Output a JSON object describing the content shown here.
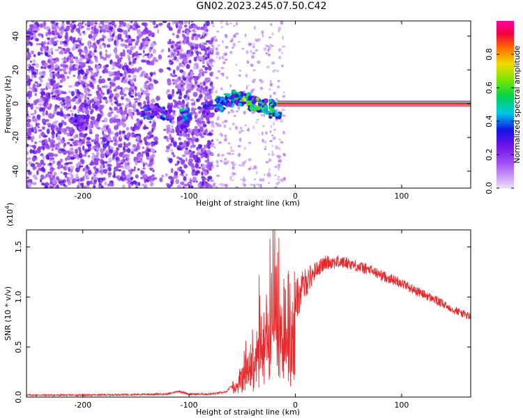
{
  "title": "GN02.2023.245.07.50.C42",
  "chart_data": [
    {
      "type": "heatmap",
      "xlabel": "Height of straight line (km)",
      "ylabel": "Frequency (Hz)",
      "xlim": [
        -253,
        165
      ],
      "ylim": [
        -50,
        49
      ],
      "x_ticks": [
        "-200",
        "-100",
        "0",
        "100"
      ],
      "x_tick_values": [
        -200,
        -100,
        0,
        100
      ],
      "y_ticks": [
        "-40",
        "-20",
        "0",
        "20",
        "40"
      ],
      "y_tick_values": [
        -40,
        -20,
        0,
        20,
        40
      ],
      "colorbar": {
        "label": "Normalized spectral amplitude",
        "ticks": [
          "0.0",
          "0.2",
          "0.4",
          "0.6",
          "0.8"
        ],
        "tick_values": [
          0.0,
          0.2,
          0.4,
          0.6,
          0.8
        ],
        "range": [
          0,
          1
        ]
      },
      "features": {
        "noise_region_x": [
          -253,
          -78
        ],
        "noise_gap_x": [
          -132,
          -120
        ],
        "signal_line_frequency": 0,
        "signal_line_x": [
          -17,
          165
        ],
        "signal_line_amplitude": 1.0,
        "transition_blobs": [
          {
            "x": -203,
            "y": -11,
            "amp": 0.35
          },
          {
            "x": -200,
            "y": -11,
            "amp": 0.3
          },
          {
            "x": -140,
            "y": -5,
            "amp": 0.45
          },
          {
            "x": -132,
            "y": -4,
            "amp": 0.3
          },
          {
            "x": -122,
            "y": -6,
            "amp": 0.4
          },
          {
            "x": -107,
            "y": -13,
            "amp": 0.3
          },
          {
            "x": -103,
            "y": -7,
            "amp": 0.5
          },
          {
            "x": -82,
            "y": -5,
            "amp": 0.35
          },
          {
            "x": -72,
            "y": 0,
            "amp": 0.5
          },
          {
            "x": -63,
            "y": 2,
            "amp": 0.55
          },
          {
            "x": -55,
            "y": 4,
            "amp": 0.6
          },
          {
            "x": -48,
            "y": 2,
            "amp": 0.65
          },
          {
            "x": -40,
            "y": 0,
            "amp": 0.6
          },
          {
            "x": -32,
            "y": -1,
            "amp": 0.6
          },
          {
            "x": -24,
            "y": -2,
            "amp": 0.55
          },
          {
            "x": -19,
            "y": -4,
            "amp": 0.6
          }
        ]
      },
      "grid": false
    },
    {
      "type": "line",
      "xlabel": "Height of straight line (km)",
      "ylabel": "SNR (10 * v/v)",
      "y_exponent_label": "(x10",
      "y_exponent_power": "4",
      "y_exponent_close": ")",
      "xlim": [
        -253,
        165
      ],
      "ylim": [
        0,
        1.67
      ],
      "x_ticks": [
        "-200",
        "-100",
        "0",
        "100"
      ],
      "x_tick_values": [
        -200,
        -100,
        0,
        100
      ],
      "y_ticks": [
        "0.0",
        "0.5",
        "1.0",
        "1.5"
      ],
      "y_tick_values": [
        0.0,
        0.5,
        1.0,
        1.5
      ],
      "series": [
        {
          "color": "#e8292b",
          "envelope": {
            "x": [
              -253,
              -200,
              -120,
              -110,
              -100,
              -80,
              -65,
              -55,
              -45,
              -38,
              -30,
              -25,
              -20,
              -15,
              -10,
              -5,
              0,
              5,
              10,
              20,
              30,
              40,
              50,
              60,
              70,
              80,
              90,
              100,
              110,
              120,
              130,
              140,
              150,
              165
            ],
            "y": [
              0.02,
              0.02,
              0.03,
              0.06,
              0.03,
              0.03,
              0.05,
              0.18,
              0.35,
              0.6,
              0.8,
              0.95,
              1.25,
              1.1,
              0.75,
              0.9,
              0.95,
              1.05,
              1.15,
              1.28,
              1.35,
              1.35,
              1.34,
              1.3,
              1.27,
              1.22,
              1.18,
              1.14,
              1.08,
              1.03,
              0.98,
              0.92,
              0.87,
              0.8
            ]
          },
          "noise": {
            "x": [
              -253,
              -60,
              -50,
              -40,
              -30,
              -20,
              -10,
              0,
              20,
              50,
              100,
              165
            ],
            "amplitude": [
              0.008,
              0.01,
              0.12,
              0.28,
              0.42,
              0.55,
              0.4,
              0.22,
              0.08,
              0.06,
              0.05,
              0.04
            ]
          }
        }
      ],
      "grid": false
    }
  ]
}
